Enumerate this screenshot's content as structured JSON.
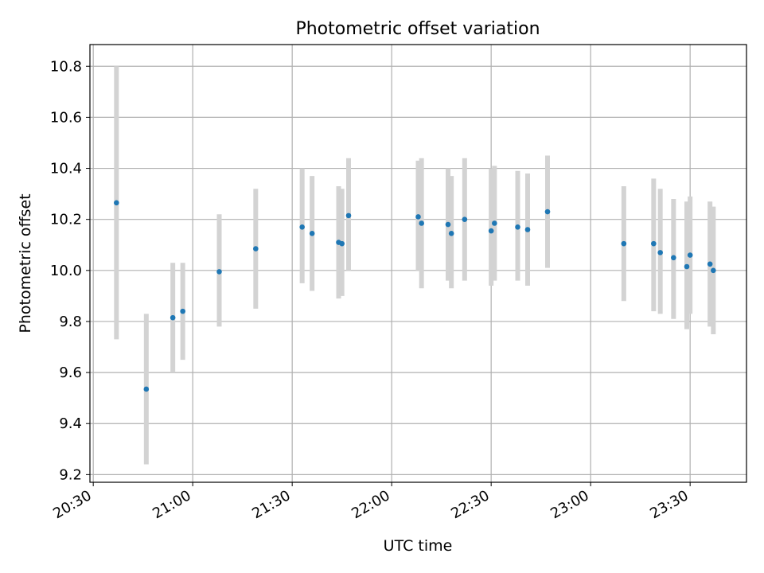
{
  "chart_data": {
    "type": "scatter",
    "title": "Photometric offset variation",
    "xlabel": "UTC time",
    "ylabel": "Photometric offset",
    "grid": true,
    "colors": {
      "point": "#1f77b4",
      "errorbar": "#d3d3d3",
      "grid": "#b0b0b0"
    },
    "xlim": [
      "20:29",
      "23:47"
    ],
    "ylim": [
      9.17,
      10.885
    ],
    "x_ticks": [
      "20:30",
      "21:00",
      "21:30",
      "22:00",
      "22:30",
      "23:00",
      "23:30"
    ],
    "y_ticks": [
      "9.2",
      "9.4",
      "9.6",
      "9.8",
      "10.0",
      "10.2",
      "10.4",
      "10.6",
      "10.8"
    ],
    "points": [
      {
        "x": "20:37",
        "y": 10.265,
        "ylow": 9.73,
        "yhigh": 10.8
      },
      {
        "x": "20:46",
        "y": 9.535,
        "ylow": 9.24,
        "yhigh": 9.83
      },
      {
        "x": "20:54",
        "y": 9.815,
        "ylow": 9.6,
        "yhigh": 10.03
      },
      {
        "x": "20:57",
        "y": 9.84,
        "ylow": 9.65,
        "yhigh": 10.03
      },
      {
        "x": "21:08",
        "y": 9.995,
        "ylow": 9.78,
        "yhigh": 10.22
      },
      {
        "x": "21:19",
        "y": 10.085,
        "ylow": 9.85,
        "yhigh": 10.32
      },
      {
        "x": "21:33",
        "y": 10.17,
        "ylow": 9.95,
        "yhigh": 10.4
      },
      {
        "x": "21:36",
        "y": 10.145,
        "ylow": 9.92,
        "yhigh": 10.37
      },
      {
        "x": "21:44",
        "y": 10.11,
        "ylow": 9.89,
        "yhigh": 10.33
      },
      {
        "x": "21:45",
        "y": 10.105,
        "ylow": 9.9,
        "yhigh": 10.32
      },
      {
        "x": "21:47",
        "y": 10.215,
        "ylow": 10.0,
        "yhigh": 10.44
      },
      {
        "x": "22:08",
        "y": 10.21,
        "ylow": 10.0,
        "yhigh": 10.43
      },
      {
        "x": "22:09",
        "y": 10.185,
        "ylow": 9.93,
        "yhigh": 10.44
      },
      {
        "x": "22:17",
        "y": 10.18,
        "ylow": 9.96,
        "yhigh": 10.4
      },
      {
        "x": "22:18",
        "y": 10.145,
        "ylow": 9.93,
        "yhigh": 10.37
      },
      {
        "x": "22:22",
        "y": 10.2,
        "ylow": 9.96,
        "yhigh": 10.44
      },
      {
        "x": "22:30",
        "y": 10.155,
        "ylow": 9.94,
        "yhigh": 10.4
      },
      {
        "x": "22:31",
        "y": 10.185,
        "ylow": 9.96,
        "yhigh": 10.41
      },
      {
        "x": "22:38",
        "y": 10.17,
        "ylow": 9.96,
        "yhigh": 10.39
      },
      {
        "x": "22:41",
        "y": 10.16,
        "ylow": 9.94,
        "yhigh": 10.38
      },
      {
        "x": "22:47",
        "y": 10.23,
        "ylow": 10.01,
        "yhigh": 10.45
      },
      {
        "x": "23:10",
        "y": 10.105,
        "ylow": 9.88,
        "yhigh": 10.33
      },
      {
        "x": "23:19",
        "y": 10.105,
        "ylow": 9.84,
        "yhigh": 10.36
      },
      {
        "x": "23:21",
        "y": 10.07,
        "ylow": 9.83,
        "yhigh": 10.32
      },
      {
        "x": "23:25",
        "y": 10.05,
        "ylow": 9.81,
        "yhigh": 10.28
      },
      {
        "x": "23:29",
        "y": 10.015,
        "ylow": 9.77,
        "yhigh": 10.27
      },
      {
        "x": "23:30",
        "y": 10.06,
        "ylow": 9.83,
        "yhigh": 10.29
      },
      {
        "x": "23:36",
        "y": 10.025,
        "ylow": 9.78,
        "yhigh": 10.27
      },
      {
        "x": "23:37",
        "y": 10.0,
        "ylow": 9.75,
        "yhigh": 10.25
      }
    ]
  }
}
